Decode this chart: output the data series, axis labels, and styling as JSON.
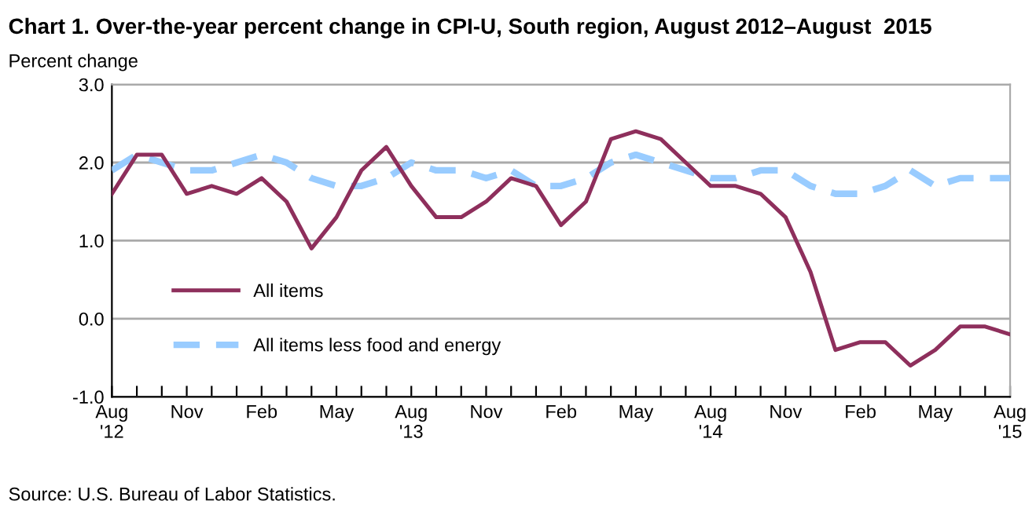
{
  "chart_data": {
    "type": "line",
    "title": "Chart 1. Over-the-year percent change in CPI-U, South region, August 2012–August  2015",
    "ylabel": "Percent change",
    "categories": [
      "Aug\n'12",
      null,
      null,
      "Nov",
      null,
      null,
      "Feb",
      null,
      null,
      "May",
      null,
      null,
      "Aug\n'13",
      null,
      null,
      "Nov",
      null,
      null,
      "Feb",
      null,
      null,
      "May",
      null,
      null,
      "Aug\n'14",
      null,
      null,
      "Nov",
      null,
      null,
      "Feb",
      null,
      null,
      "May",
      null,
      null,
      "Aug\n'15"
    ],
    "series": [
      {
        "name": "All items",
        "color": "#8e2f5c",
        "line_style": "solid",
        "values": [
          1.6,
          2.1,
          2.1,
          1.6,
          1.7,
          1.6,
          1.8,
          1.5,
          0.9,
          1.3,
          1.9,
          2.2,
          1.7,
          1.3,
          1.3,
          1.5,
          1.8,
          1.7,
          1.2,
          1.5,
          2.3,
          2.4,
          2.3,
          2.0,
          1.7,
          1.7,
          1.6,
          1.3,
          0.6,
          -0.4,
          -0.3,
          -0.3,
          -0.6,
          -0.4,
          -0.1,
          -0.1,
          -0.2
        ]
      },
      {
        "name": "All items less food and energy",
        "color": "#99ccff",
        "line_style": "dashed",
        "values": [
          1.9,
          2.1,
          2.0,
          1.9,
          1.9,
          2.0,
          2.1,
          2.0,
          1.8,
          1.7,
          1.7,
          1.8,
          2.0,
          1.9,
          1.9,
          1.8,
          1.9,
          1.7,
          1.7,
          1.8,
          2.0,
          2.1,
          2.0,
          1.9,
          1.8,
          1.8,
          1.9,
          1.9,
          1.7,
          1.6,
          1.6,
          1.7,
          1.9,
          1.7,
          1.8,
          1.8,
          1.8
        ]
      }
    ],
    "ylim": [
      -1.0,
      3.0
    ],
    "yticks": [
      {
        "value": -1.0,
        "label": "-1.0"
      },
      {
        "value": 0.0,
        "label": "0.0"
      },
      {
        "value": 1.0,
        "label": "1.0"
      },
      {
        "value": 2.0,
        "label": "2.0"
      },
      {
        "value": 3.0,
        "label": "3.0"
      }
    ],
    "grid": "y",
    "legend": "bottom left",
    "marker": "none",
    "annotations": [
      "Source: U.S. Bureau of Labor Statistics."
    ]
  }
}
